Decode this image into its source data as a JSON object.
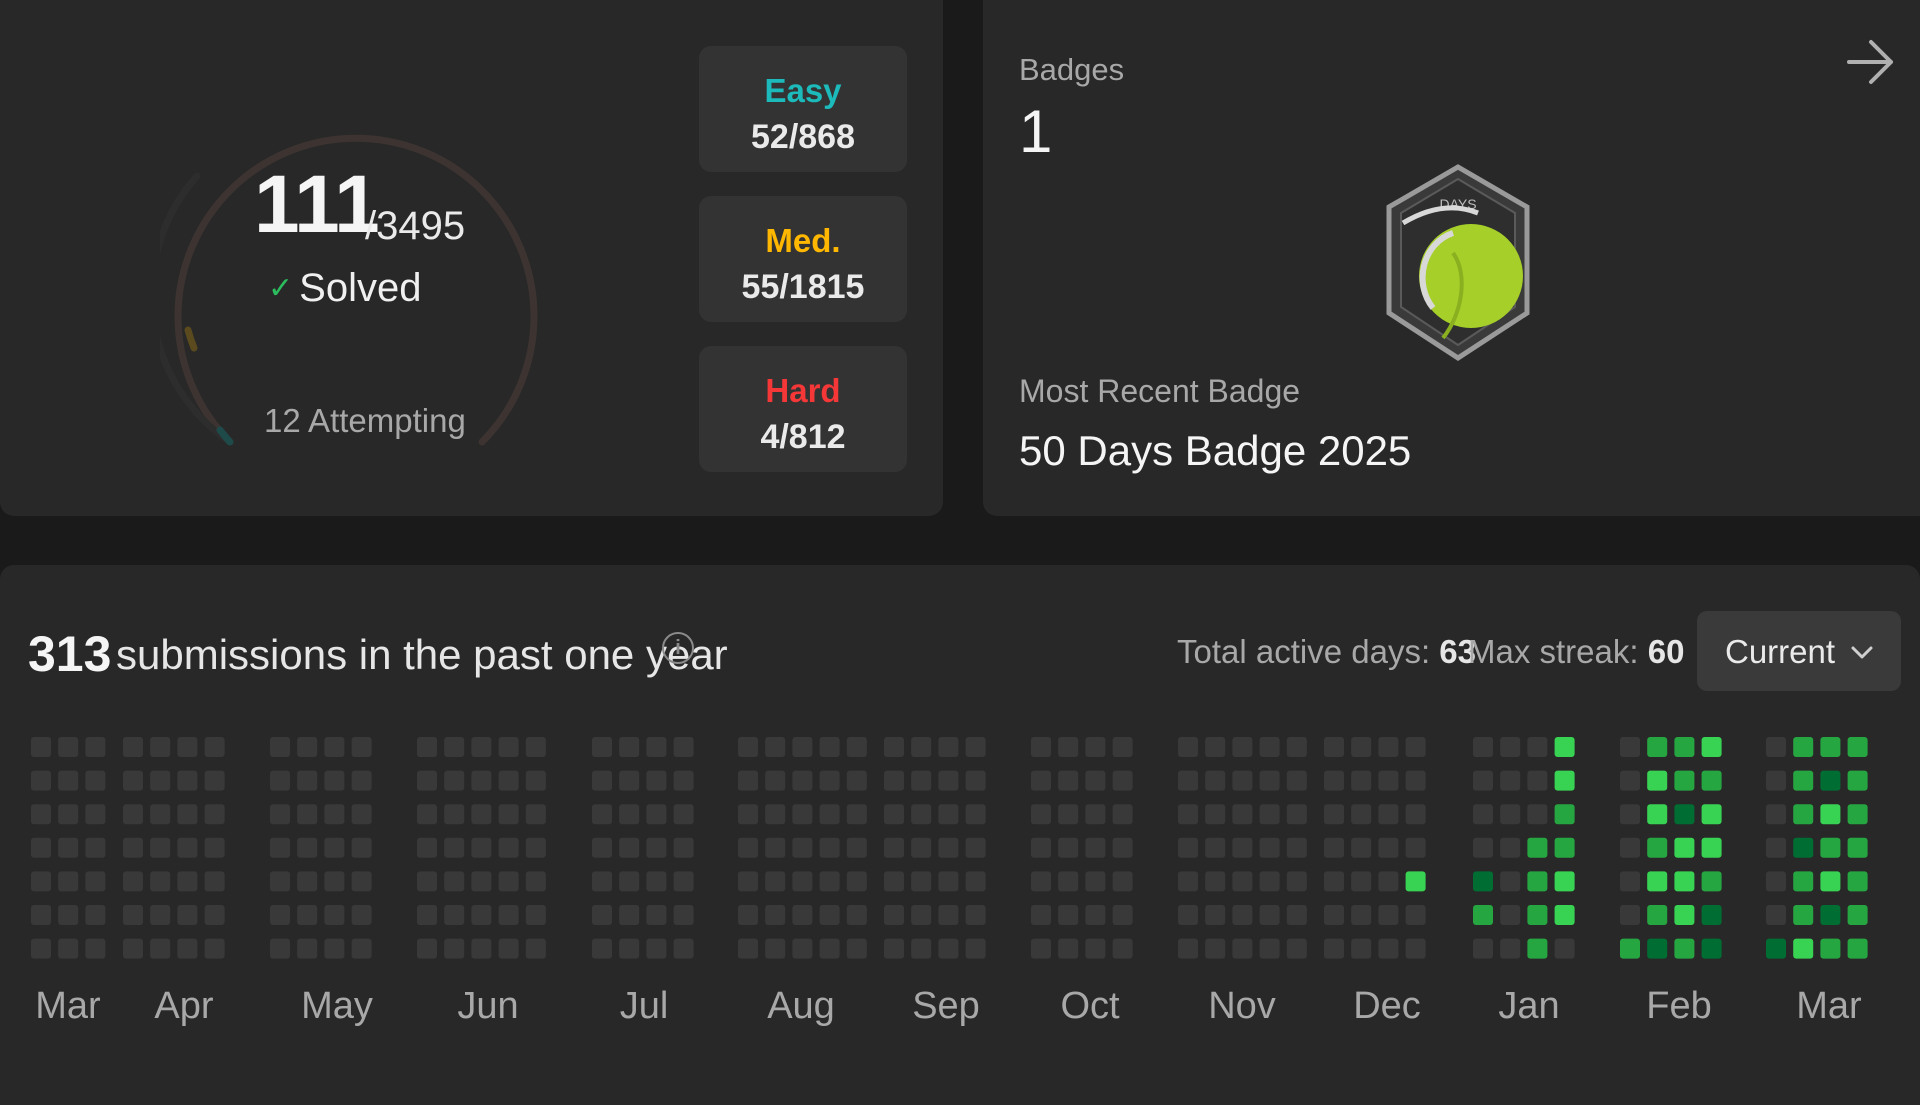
{
  "progress": {
    "solved": "111",
    "total": "/3495",
    "solved_label": "Solved",
    "attempting": "12 Attempting",
    "difficulty": [
      {
        "label": "Easy",
        "count": "52/868",
        "color": "#1cbaba"
      },
      {
        "label": "Med.",
        "count": "55/1815",
        "color": "#ffb700"
      },
      {
        "label": "Hard",
        "count": "4/812",
        "color": "#f63737"
      }
    ]
  },
  "badges": {
    "title": "Badges",
    "count": "1",
    "recent_label": "Most Recent Badge",
    "recent_name": "50 Days Badge 2025",
    "badge_text": "DAYS"
  },
  "submissions": {
    "count": "313",
    "text": "submissions in the past one year",
    "active_days_label": "Total active days:",
    "active_days": "63",
    "max_streak_label": "Max streak:",
    "max_streak": "60",
    "selector": "Current",
    "months": [
      "Mar",
      "Apr",
      "May",
      "Jun",
      "Jul",
      "Aug",
      "Sep",
      "Oct",
      "Nov",
      "Dec",
      "Jan",
      "Feb",
      "Mar"
    ],
    "colors": {
      "empty": "#393939",
      "level1": "#0e4429",
      "level2": "#006d32",
      "level3": "#26a641",
      "level4": "#39d353"
    }
  }
}
